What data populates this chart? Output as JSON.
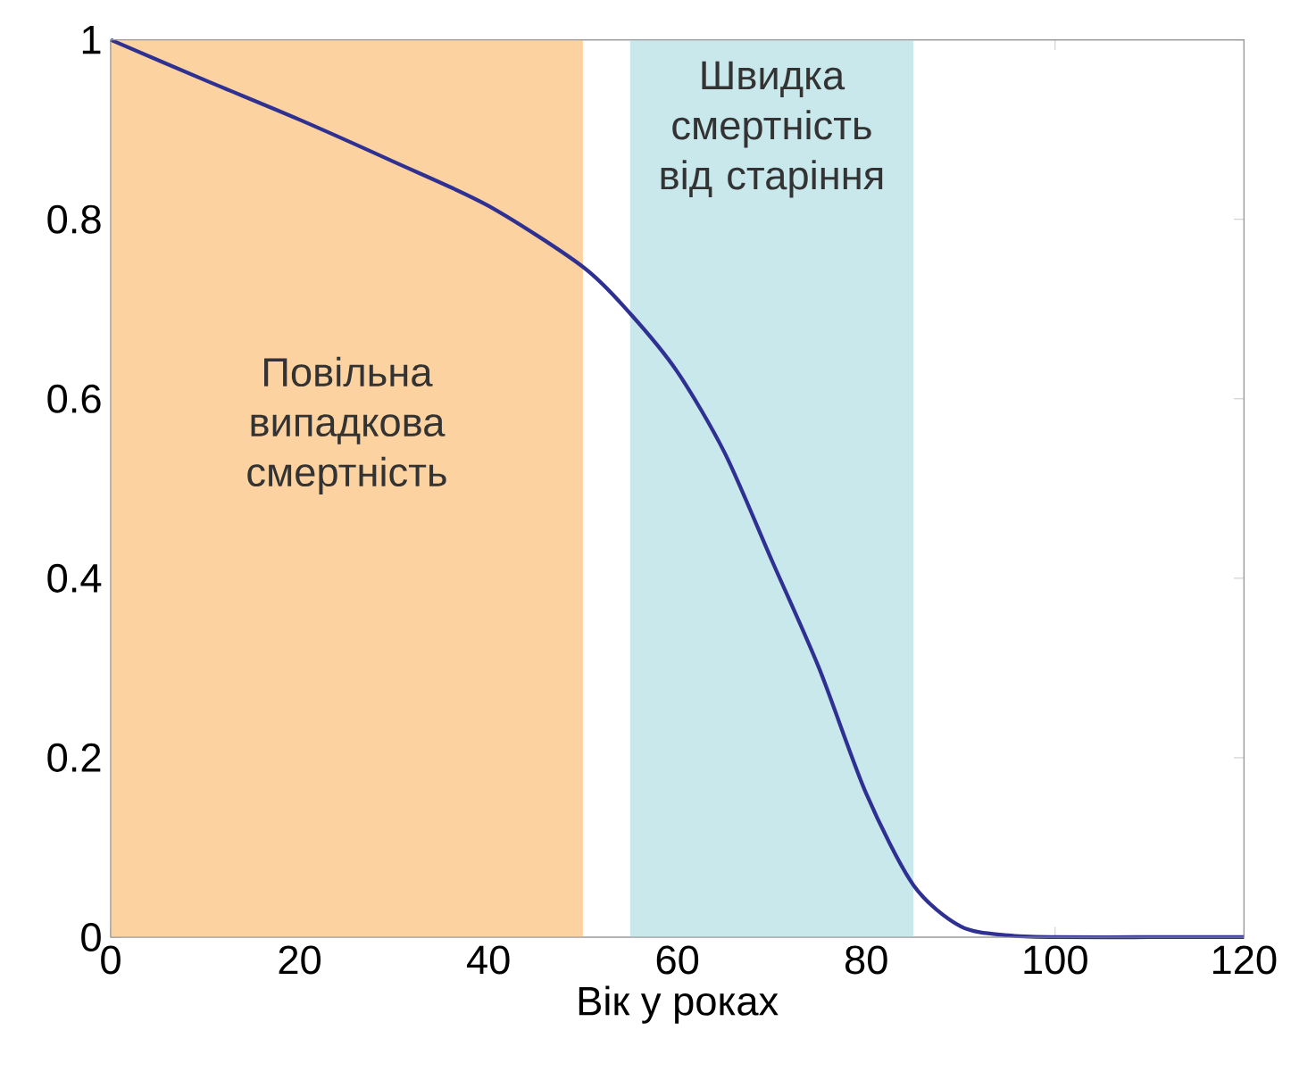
{
  "chart_data": {
    "type": "line",
    "xlabel": "Вік у роках",
    "xlim": [
      0,
      120
    ],
    "ylim": [
      0,
      1
    ],
    "xticks": [
      0,
      20,
      40,
      60,
      80,
      100,
      120
    ],
    "yticks": [
      0,
      {
        "value": 0.2,
        "label": "0.2"
      },
      {
        "value": 0.4,
        "label": "0.4"
      },
      {
        "value": 0.6,
        "label": "0.6"
      },
      {
        "value": 0.8,
        "label": "0.8"
      },
      1
    ],
    "series": [
      {
        "color": "#2e3192",
        "x": [
          0,
          10,
          20,
          30,
          40,
          50,
          55,
          60,
          65,
          70,
          75,
          80,
          85,
          90,
          95,
          100,
          110,
          120
        ],
        "values": [
          1,
          0.955,
          0.911,
          0.864,
          0.815,
          0.747,
          0.695,
          0.63,
          0.54,
          0.42,
          0.3,
          0.16,
          0.058,
          0.012,
          0.002,
          0,
          0,
          0
        ]
      }
    ],
    "bands": [
      {
        "axis": "x",
        "from": 0,
        "to": 50,
        "label": "Повільна випадкова смертність",
        "color": "#fcd3a0"
      },
      {
        "axis": "x",
        "from": 55,
        "to": 85,
        "label": "Швидка смертність від старіння",
        "color": "#c9e8ec"
      }
    ],
    "grid": false,
    "marker": "none",
    "line_style": "solid"
  }
}
